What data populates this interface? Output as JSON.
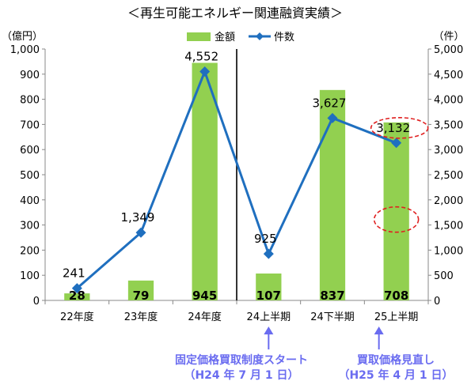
{
  "chart_data": {
    "type": "bar",
    "title": "＜再生可能エネルギー関連融資実績＞",
    "categories": [
      "22年度",
      "23年度",
      "24年度",
      "24上半期",
      "24下半期",
      "25上半期"
    ],
    "y_left_unit": "（億円）",
    "y_right_unit": "（件）",
    "ylim_left": [
      0,
      1000
    ],
    "ylim_right": [
      0,
      5000
    ],
    "yticks_left": [
      "0",
      "100",
      "200",
      "300",
      "400",
      "500",
      "600",
      "700",
      "800",
      "900",
      "1,000"
    ],
    "yticks_right": [
      "0",
      "500",
      "1,000",
      "1,500",
      "2,000",
      "2,500",
      "3,000",
      "3,500",
      "4,000",
      "4,500",
      "5,000"
    ],
    "series": [
      {
        "name": "金額",
        "type": "bar",
        "axis": "left",
        "values": [
          28,
          79,
          945,
          107,
          837,
          708
        ],
        "labels": [
          "28",
          "79",
          "945",
          "107",
          "837",
          "708"
        ],
        "color": "#92d050"
      },
      {
        "name": "件数",
        "type": "line",
        "axis": "right",
        "values": [
          241,
          1349,
          4552,
          925,
          3627,
          3132
        ],
        "labels": [
          "241",
          "1,349",
          "4,552",
          "925",
          "3,627",
          "3,132"
        ],
        "color": "#1f6fbf"
      }
    ],
    "grid": false,
    "legend": "top-center",
    "highlight_color": "#e02020"
  },
  "annotations": {
    "fit_line1": "固定価格買取制度スタート",
    "fit_line2": "（H24 年 7 月 1 日）",
    "rev_line1": "買取価格見直し",
    "rev_line2": "（H25 年 4 月 1 日）",
    "color": "#6a6cf0"
  }
}
